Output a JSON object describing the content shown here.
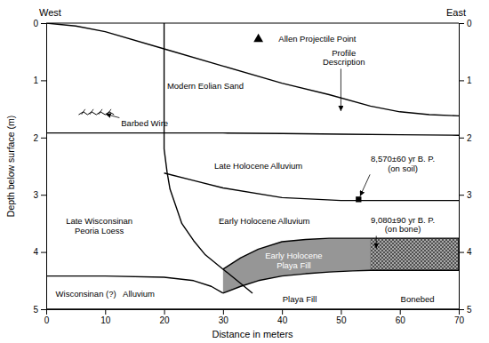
{
  "chart_data": {
    "type": "line",
    "xlabel": "Distance in meters",
    "ylabel": "Depth below surface (m)",
    "west_label": "West",
    "east_label": "East",
    "xlim": [
      0,
      70
    ],
    "ylim": [
      5,
      0
    ],
    "xticks": [
      0,
      10,
      20,
      30,
      40,
      50,
      60,
      70
    ],
    "yticks": [
      0,
      1,
      2,
      3,
      4,
      5
    ],
    "y2lim": [
      5,
      0
    ],
    "y2ticks": [
      0,
      1,
      2,
      3,
      4,
      5
    ],
    "series": [
      {
        "type": "area",
        "color": "#969696",
        "x": [
          30,
          33,
          36,
          40,
          44,
          48,
          52,
          55,
          60,
          65,
          70
        ],
        "values": [
          4.3,
          4.1,
          3.95,
          3.82,
          3.78,
          3.76,
          3.76,
          3.76,
          3.76,
          3.76,
          3.76
        ],
        "bottom": [
          4.72,
          4.6,
          4.5,
          4.42,
          4.38,
          4.35,
          4.33,
          4.32,
          4.32,
          4.32,
          4.32
        ]
      },
      {
        "type": "area",
        "color": "#505050",
        "line_style": "hatch",
        "x": [
          55,
          60,
          65,
          70
        ],
        "values": [
          3.76,
          3.76,
          3.76,
          3.76
        ],
        "bottom": [
          4.32,
          4.32,
          4.32,
          4.32
        ]
      },
      {
        "type": "line",
        "color": "#000000",
        "x": [
          0,
          5,
          10,
          20,
          30,
          40,
          48,
          55,
          60,
          65,
          70
        ],
        "values": [
          0.0,
          0.05,
          0.15,
          0.45,
          0.75,
          1.05,
          1.25,
          1.45,
          1.55,
          1.6,
          1.62
        ]
      },
      {
        "type": "line",
        "color": "#000000",
        "x": [
          0,
          10,
          20,
          30,
          40,
          50,
          60,
          70
        ],
        "values": [
          1.92,
          1.92,
          1.92,
          1.92,
          1.93,
          1.94,
          1.95,
          1.96
        ]
      },
      {
        "type": "line",
        "color": "#000000",
        "x": [
          20,
          25,
          30,
          40,
          50,
          60,
          70
        ],
        "values": [
          2.62,
          2.75,
          2.88,
          3.05,
          3.1,
          3.1,
          3.1
        ]
      },
      {
        "type": "line",
        "color": "#000000",
        "x": [
          20,
          20,
          20.5,
          21,
          22,
          23,
          25,
          27,
          30,
          33,
          35
        ],
        "values": [
          1.92,
          2.2,
          2.6,
          2.9,
          3.2,
          3.5,
          3.8,
          4.05,
          4.3,
          4.55,
          4.72
        ]
      },
      {
        "type": "line",
        "color": "#000000",
        "x": [
          30,
          33,
          36,
          40,
          44,
          48,
          52,
          55,
          60,
          65,
          70
        ],
        "values": [
          4.3,
          4.1,
          3.95,
          3.82,
          3.78,
          3.76,
          3.76,
          3.76,
          3.76,
          3.76,
          3.76
        ]
      },
      {
        "type": "line",
        "color": "#000000",
        "x": [
          30,
          33,
          36,
          40,
          44,
          48,
          52,
          55,
          60,
          65,
          70
        ],
        "values": [
          4.72,
          4.6,
          4.5,
          4.42,
          4.38,
          4.35,
          4.33,
          4.32,
          4.32,
          4.32,
          4.32
        ]
      },
      {
        "type": "line",
        "color": "#000000",
        "x": [
          20,
          20
        ],
        "values": [
          0,
          1.92
        ]
      },
      {
        "type": "line",
        "color": "#000000",
        "x": [
          0,
          10,
          20,
          25,
          28,
          30
        ],
        "values": [
          4.42,
          4.42,
          4.44,
          4.5,
          4.6,
          4.72
        ]
      },
      {
        "type": "line",
        "color": "#000000",
        "x": [
          0,
          70
        ],
        "values": [
          5,
          5
        ]
      },
      {
        "type": "line",
        "color": "#000000",
        "x": [
          70,
          70
        ],
        "values": [
          3.76,
          4.32
        ]
      },
      {
        "type": "line",
        "color": "#000000",
        "marker": "barb",
        "x": [
          5.5,
          6.3,
          7.0,
          7.7,
          8.5,
          9.2,
          10.0,
          10.7,
          11.5
        ],
        "values": [
          1.6,
          1.55,
          1.6,
          1.55,
          1.6,
          1.55,
          1.6,
          1.55,
          1.6
        ]
      },
      {
        "type": "scatter",
        "color": "#000000",
        "marker": "triangle",
        "x": [
          36
        ],
        "values": [
          0.28
        ]
      },
      {
        "type": "scatter",
        "color": "#000000",
        "marker": "square",
        "x": [
          53
        ],
        "values": [
          3.08
        ]
      }
    ],
    "annotations": [
      {
        "text": "Allen Projectile Point",
        "x": 46,
        "y": 0.28
      },
      {
        "text": "Profile\nDescription",
        "x": 50.5,
        "y": 0.6,
        "arrow": [
          50,
          1.6
        ]
      },
      {
        "text": "Modern Eolian Sand",
        "x": 27,
        "y": 1.1
      },
      {
        "text": "Barbed Wire",
        "x": 16.7,
        "y": 1.75,
        "arrow": [
          9.5,
          1.575
        ]
      },
      {
        "text": "Late Holocene Alluvium",
        "x": 36,
        "y": 2.5
      },
      {
        "text": "8,570±60 yr B. P.\n(on soil)",
        "x": 60.5,
        "y": 2.45,
        "arrow": [
          53,
          3.08
        ]
      },
      {
        "text": "Early Holocene Alluvium",
        "x": 37,
        "y": 3.45
      },
      {
        "text": "Late Wisconsinan\nPeoria Loess",
        "x": 9,
        "y": 3.55
      },
      {
        "text": "9,080±90 yr B. P.\n(on bone)",
        "x": 60.5,
        "y": 3.52,
        "arrow": [
          56,
          4.0
        ]
      },
      {
        "text": "Early Holocene\nPlaya Fill",
        "x": 42,
        "y": 4.15,
        "color": "#ffffff"
      },
      {
        "text": "Playa Fill",
        "x": 43,
        "y": 4.82
      },
      {
        "text": "Bonebed",
        "x": 63,
        "y": 4.82
      },
      {
        "text": "Wisconsinan (?)   Alluvium",
        "x": 10,
        "y": 4.73
      }
    ]
  }
}
